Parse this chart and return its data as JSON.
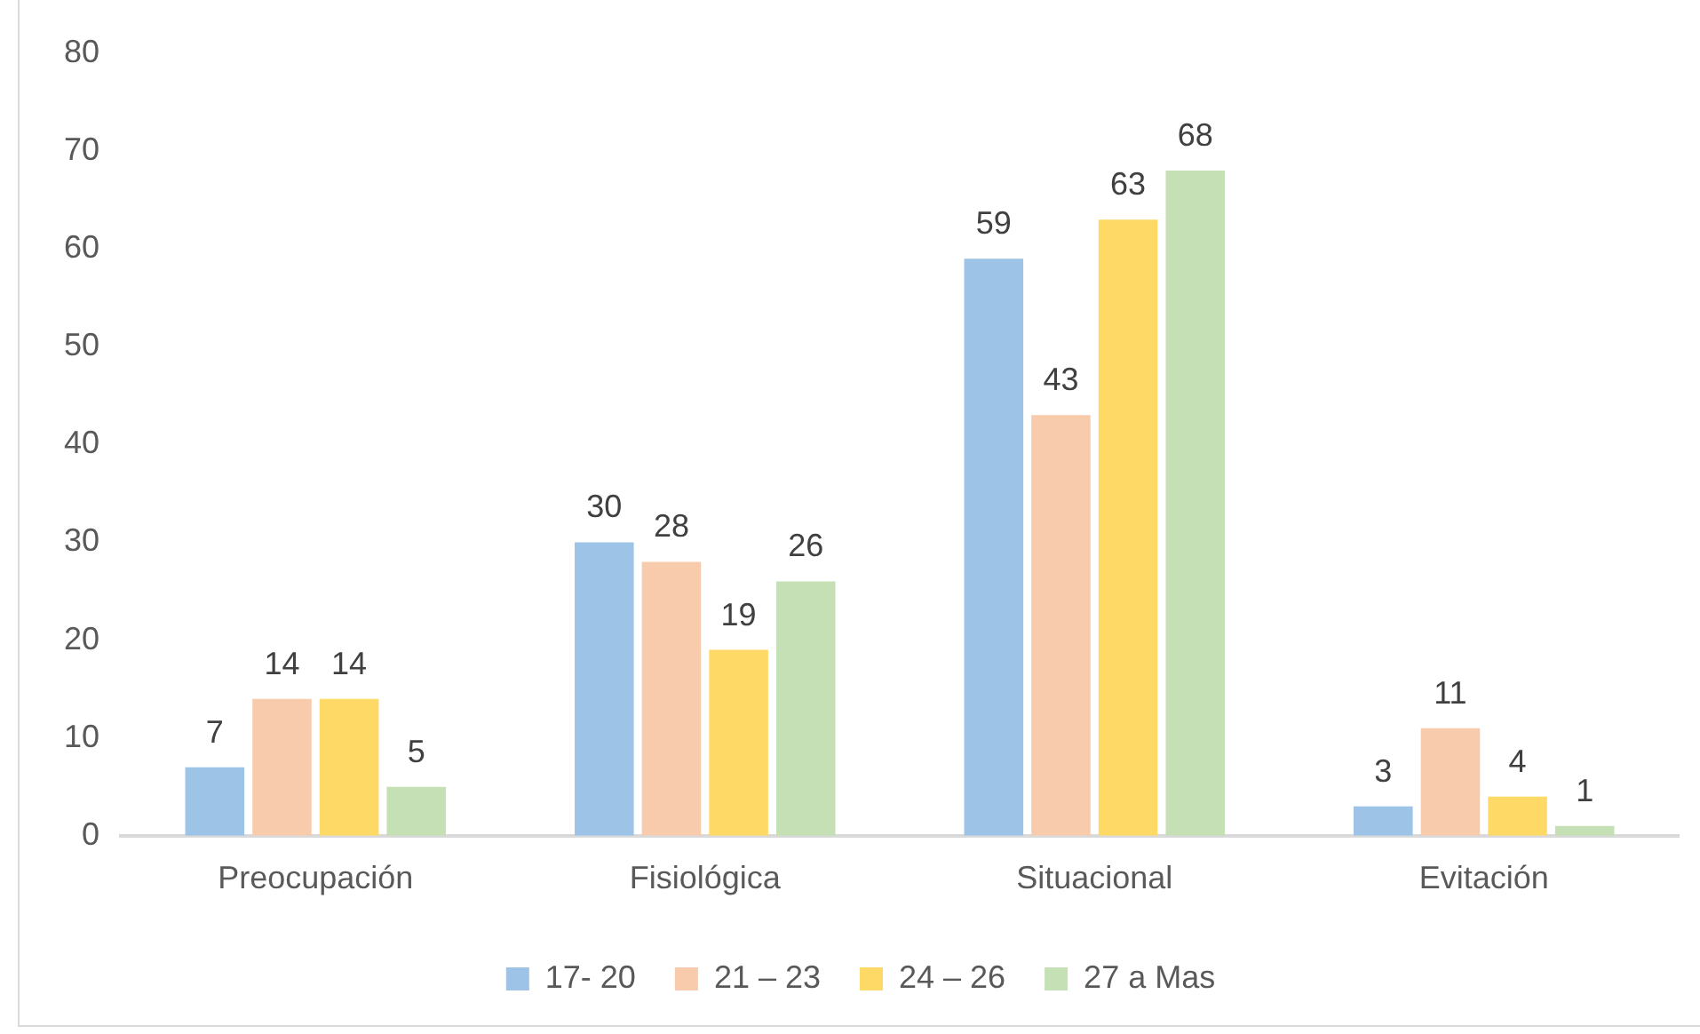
{
  "chart_data": {
    "type": "bar",
    "categories": [
      "Preocupación",
      "Fisiológica",
      "Situacional",
      "Evitación"
    ],
    "series": [
      {
        "name": "17- 20",
        "color": "#9dc3e6",
        "values": [
          7,
          30,
          59,
          3
        ]
      },
      {
        "name": "21 – 23",
        "color": "#f8cbad",
        "values": [
          14,
          28,
          43,
          11
        ]
      },
      {
        "name": "24 – 26",
        "color": "#ffd966",
        "values": [
          14,
          19,
          63,
          4
        ]
      },
      {
        "name": "27 a Mas",
        "color": "#c5e0b4",
        "values": [
          5,
          26,
          68,
          1
        ]
      }
    ],
    "ylim": [
      0,
      80
    ],
    "yticks": [
      0,
      10,
      20,
      30,
      40,
      50,
      60,
      70,
      80
    ],
    "legend": "bottom",
    "data_labels": true
  }
}
